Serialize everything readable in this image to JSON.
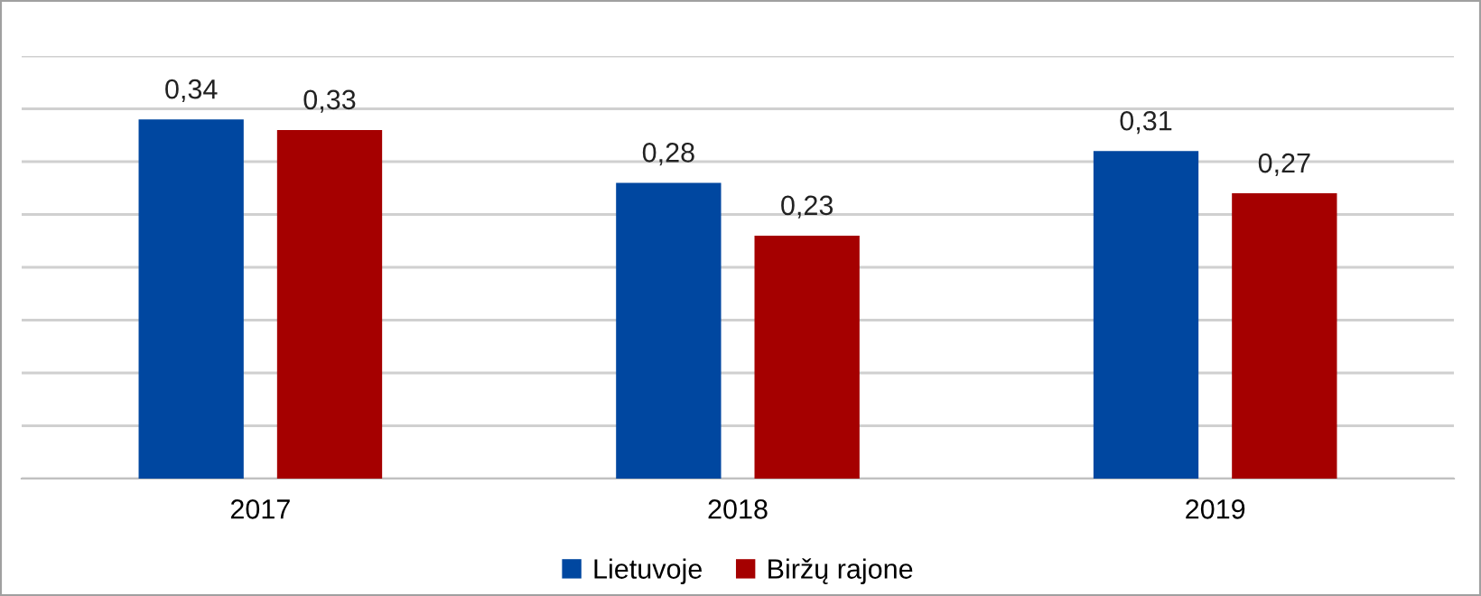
{
  "chart_data": {
    "type": "bar",
    "categories": [
      "2017",
      "2018",
      "2019"
    ],
    "series": [
      {
        "name": "Lietuvoje",
        "color": "#0047a0",
        "values": [
          0.34,
          0.28,
          0.31
        ],
        "value_labels": [
          "0,34",
          "0,28",
          "0,31"
        ]
      },
      {
        "name": "Biržų rajone",
        "color": "#a50000",
        "values": [
          0.33,
          0.23,
          0.27
        ],
        "value_labels": [
          "0,33",
          "0,23",
          "0,27"
        ]
      }
    ],
    "ylim": [
      0,
      0.4
    ],
    "yticks": [
      {
        "value": 0,
        "label": null
      },
      {
        "value": 0.05,
        "label": null
      },
      {
        "value": 0.1,
        "label": null
      },
      {
        "value": 0.15,
        "label": null
      },
      {
        "value": 0.2,
        "label": null
      },
      {
        "value": 0.25,
        "label": null
      },
      {
        "value": 0.3,
        "label": null
      },
      {
        "value": 0.35,
        "label": null
      },
      {
        "value": 0.4,
        "label": null
      }
    ],
    "grid": "y",
    "legend": "bottom",
    "tick_labels": "x"
  }
}
